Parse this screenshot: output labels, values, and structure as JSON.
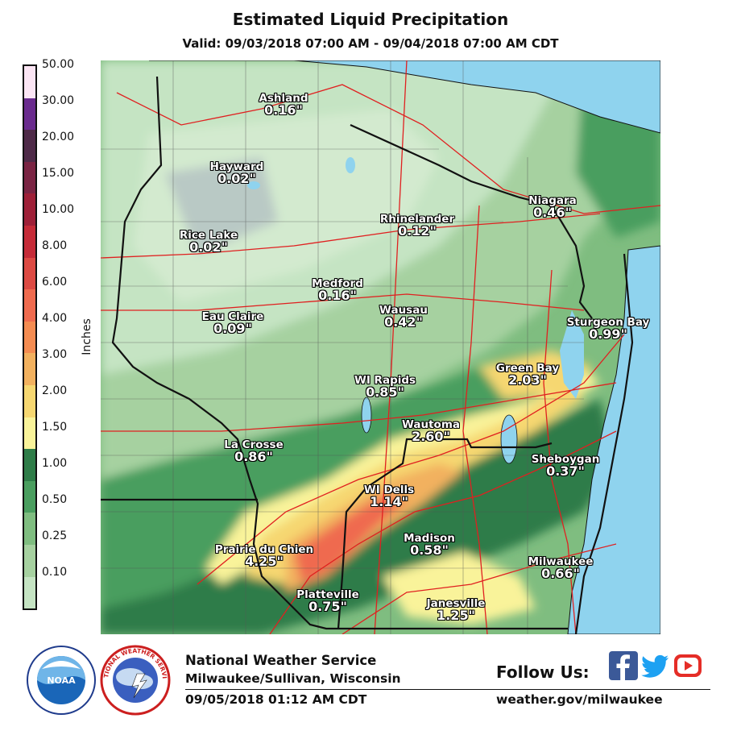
{
  "header": {
    "title": "Estimated Liquid Precipitation",
    "valid": "Valid: 09/03/2018 07:00 AM - 09/04/2018 07:00 AM CDT"
  },
  "legend": {
    "axis_label": "Inches",
    "ticks": [
      "50.00",
      "30.00",
      "20.00",
      "15.00",
      "10.00",
      "8.00",
      "6.00",
      "4.00",
      "3.00",
      "2.00",
      "1.50",
      "1.00",
      "0.50",
      "0.25",
      "0.10"
    ],
    "colors_top_to_bottom": [
      "#fbe5f4",
      "#6a2b8e",
      "#4e2a48",
      "#7a2443",
      "#9e2038",
      "#c52b38",
      "#dc4a43",
      "#ef6b4f",
      "#f48c52",
      "#f2b15f",
      "#f6d771",
      "#f9f39a",
      "#2e7c48",
      "#4a9e5f",
      "#7fbd80",
      "#a6d1a0",
      "#c5e4c3"
    ]
  },
  "map": {
    "cities": [
      {
        "name": "Ashland",
        "value": "0.16\""
      },
      {
        "name": "Hayward",
        "value": "0.02\""
      },
      {
        "name": "Rice Lake",
        "value": "0.02\""
      },
      {
        "name": "Rhinelander",
        "value": "0.12\""
      },
      {
        "name": "Niagara",
        "value": "0.46\""
      },
      {
        "name": "Medford",
        "value": "0.16\""
      },
      {
        "name": "Eau Claire",
        "value": "0.09\""
      },
      {
        "name": "Wausau",
        "value": "0.42\""
      },
      {
        "name": "Sturgeon Bay",
        "value": "0.99\""
      },
      {
        "name": "Green Bay",
        "value": "2.03\""
      },
      {
        "name": "WI Rapids",
        "value": "0.85\""
      },
      {
        "name": "Wautoma",
        "value": "2.60\""
      },
      {
        "name": "La Crosse",
        "value": "0.86\""
      },
      {
        "name": "Sheboygan",
        "value": "0.37\""
      },
      {
        "name": "WI Dells",
        "value": "1.14\""
      },
      {
        "name": "Madison",
        "value": "0.58\""
      },
      {
        "name": "Prairie du Chien",
        "value": "4.25\""
      },
      {
        "name": "Milwaukee",
        "value": "0.66\""
      },
      {
        "name": "Platteville",
        "value": "0.75\""
      },
      {
        "name": "Janesville",
        "value": "1.25\""
      }
    ]
  },
  "footer": {
    "org": "National Weather Service",
    "office": "Milwaukee/Sullivan, Wisconsin",
    "issued": "09/05/2018 01:12 AM CDT",
    "follow": "Follow Us:",
    "website": "weather.gov/milwaukee",
    "noaa_logo_text": "NOAA",
    "nws_logo_text": "NATIONAL WEATHER SERVICE",
    "social_icons": [
      "facebook-icon",
      "twitter-icon",
      "youtube-icon"
    ]
  },
  "colors": {
    "water": "#8fd3ee",
    "border_state": "#111111",
    "highway": "#e02020",
    "county": "#555555"
  }
}
